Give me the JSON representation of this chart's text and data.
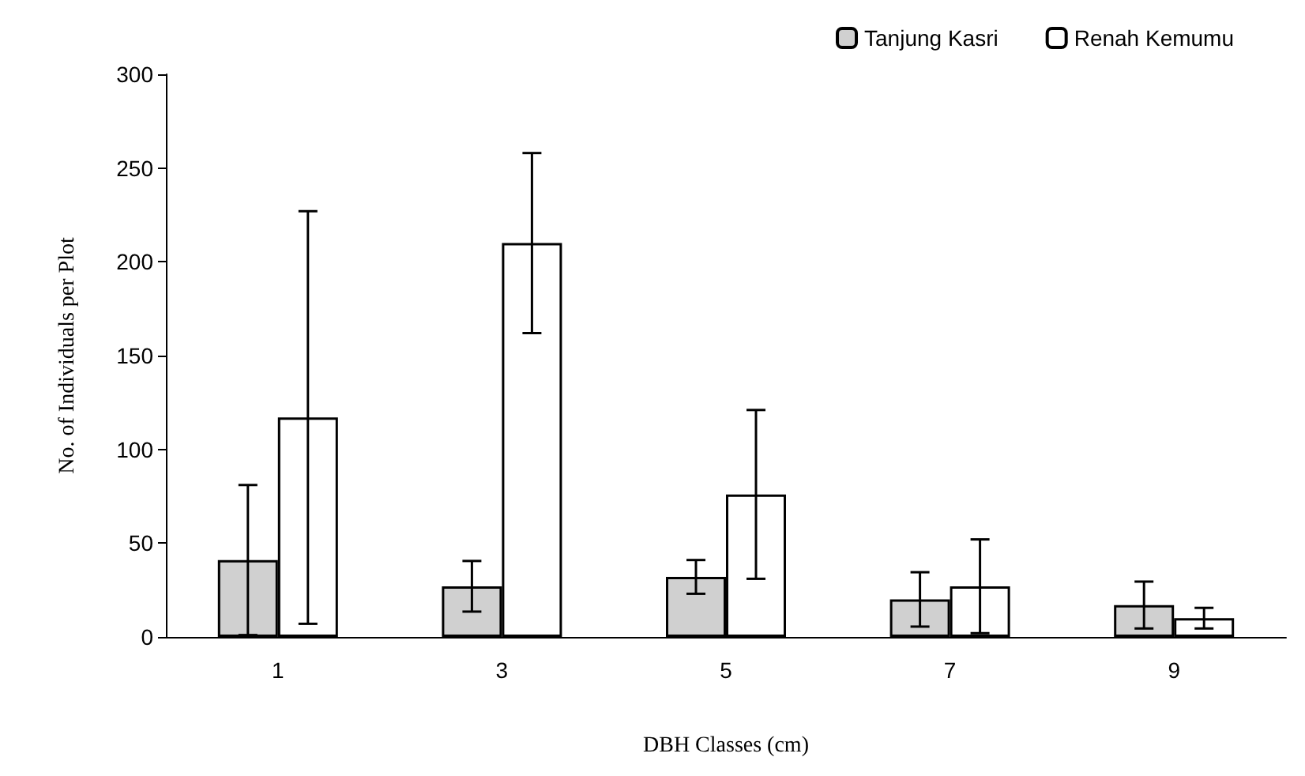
{
  "chart_data": {
    "type": "bar",
    "xlabel": "DBH Classes (cm)",
    "ylabel": "No. of Individuals per Plot",
    "categories": [
      "1",
      "3",
      "5",
      "7",
      "9"
    ],
    "series": [
      {
        "name": "Tanjung Kasri",
        "color": "#d0d0d0",
        "values": [
          41,
          27,
          32,
          20,
          17
        ],
        "errors": [
          40,
          13.5,
          9,
          14.5,
          12.5
        ]
      },
      {
        "name": "Renah Kemumu",
        "color": "#ffffff",
        "values": [
          117,
          210,
          76,
          27,
          10
        ],
        "errors": [
          110,
          48,
          45,
          25,
          5.5
        ]
      }
    ],
    "ylim": [
      0,
      300
    ],
    "yticks": [
      0,
      50,
      100,
      150,
      200,
      250,
      300
    ],
    "grid": false,
    "legend": "top right"
  }
}
